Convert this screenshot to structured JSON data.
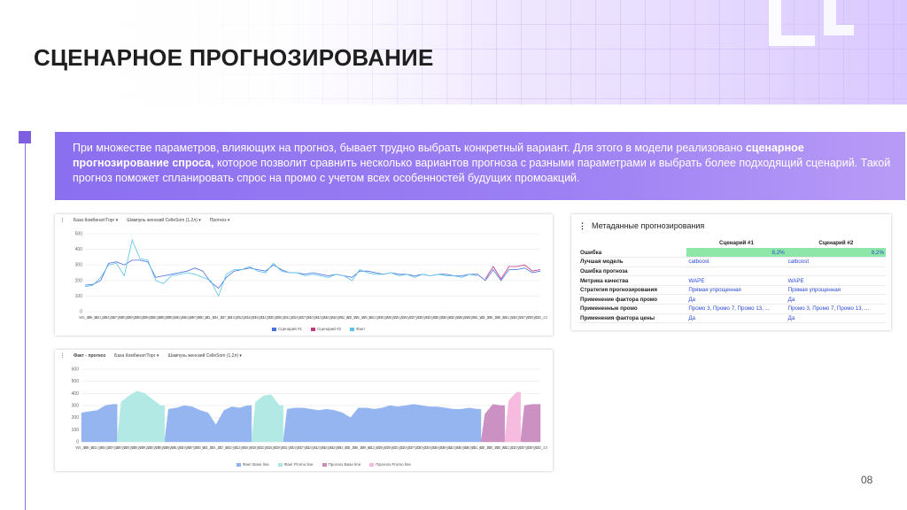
{
  "slide": {
    "title": "СЦЕНАРНОЕ ПРОГНОЗИРОВАНИЕ",
    "page_number": "08",
    "accent": "#8a6ff0"
  },
  "intro": {
    "part1": "При множестве параметров, влияющих на прогноз, бывает трудно выбрать конкретный вариант. Для этого в модели реализовано ",
    "highlight": "сценарное прогнозирование спроса,",
    "part2": " которое позволит сравнить несколько вариантов прогноза с разными параметрами и выбрать более подходящий сценарий. Такой прогноз поможет спланировать спрос на промо с учетом всех особенностей будущих промоакций."
  },
  "chart_top": {
    "filters": [
      "База Комбинат/Торг",
      "Шампунь женский CelleSom (1,2л)",
      "Прогноз"
    ],
    "legend": [
      "Сценарий #1",
      "Сценарий #2",
      "Факт"
    ],
    "colors": {
      "scenario1": "#4a6fe0",
      "scenario2": "#c0387a",
      "fact": "#5bc3e8"
    }
  },
  "chart_bottom": {
    "title": "Факт - прогноз",
    "filters": [
      "База Комбинат/Торг",
      "Шампунь женский CelleSom (1,2л)"
    ],
    "legend": [
      "Факт Base line",
      "Факт Promo line",
      "Прогноз Base line",
      "Прогноз Promo line"
    ],
    "colors": {
      "fact_base": "#8fb2ef",
      "fact_promo": "#aee8e3",
      "forecast_base": "#c98cbf",
      "forecast_promo": "#f6b8dd"
    }
  },
  "chart_data": [
    {
      "type": "line",
      "title": "",
      "x": [
        "W5_20",
        "W8_20",
        "W11_20",
        "W14_20",
        "W17_20",
        "W20_20",
        "W23_20",
        "W26_20",
        "W29_20",
        "W32_20",
        "W35_20",
        "W38_20",
        "W41_20",
        "W44_20",
        "W47_20",
        "W50_20",
        "W1_21",
        "W4_21",
        "W7_21",
        "W10_21",
        "W13_21",
        "W16_21",
        "W19_21",
        "W22_21",
        "W25_21",
        "W28_21",
        "W31_21",
        "W34_21",
        "W37_21",
        "W40_21",
        "W43_21",
        "W46_21",
        "W49_21",
        "W52_21",
        "W3_22",
        "W6_22",
        "W9_22",
        "W12_22",
        "W15_22",
        "W18_22",
        "W21_22",
        "W24_22",
        "W27_22",
        "W30_22",
        "W33_22",
        "W36_22",
        "W39_22",
        "W42_22",
        "W45_22",
        "W48_22",
        "W51_22",
        "W2_23",
        "W5_23",
        "W8_23",
        "W11_23",
        "W14_23",
        "W17_23",
        "W20_23",
        "W23_23"
      ],
      "ylim": [
        0,
        500
      ],
      "yticks": [
        0,
        100,
        200,
        300,
        400,
        500
      ],
      "series": [
        {
          "name": "Сценарий #1",
          "values": [
            170,
            175,
            200,
            310,
            320,
            300,
            330,
            330,
            320,
            220,
            230,
            240,
            250,
            260,
            280,
            260,
            190,
            150,
            220,
            260,
            270,
            280,
            270,
            260,
            300,
            270,
            250,
            250,
            240,
            250,
            240,
            230,
            240,
            230,
            220,
            260,
            260,
            250,
            240,
            250,
            240,
            240,
            230,
            240,
            230,
            240,
            240,
            230,
            230,
            240,
            240,
            200,
            270,
            200,
            270,
            270,
            280,
            250,
            260
          ]
        },
        {
          "name": "Сценарий #2",
          "values": [
            null,
            null,
            null,
            null,
            null,
            null,
            null,
            null,
            null,
            null,
            null,
            null,
            null,
            null,
            null,
            null,
            null,
            null,
            null,
            null,
            null,
            null,
            null,
            null,
            null,
            null,
            null,
            null,
            null,
            null,
            null,
            null,
            null,
            null,
            null,
            null,
            null,
            null,
            null,
            null,
            null,
            null,
            null,
            null,
            null,
            null,
            null,
            null,
            null,
            null,
            null,
            210,
            290,
            210,
            290,
            290,
            300,
            260,
            270
          ]
        },
        {
          "name": "Факт",
          "values": [
            160,
            170,
            220,
            300,
            310,
            230,
            460,
            340,
            330,
            200,
            180,
            230,
            240,
            250,
            240,
            220,
            200,
            100,
            240,
            270,
            270,
            290,
            260,
            250,
            310,
            260,
            250,
            250,
            230,
            240,
            230,
            220,
            240,
            230,
            200,
            270,
            250,
            240,
            240,
            250,
            230,
            240,
            220,
            240,
            230,
            240,
            230,
            230,
            220,
            240,
            230,
            null,
            null,
            null,
            null,
            null,
            null,
            null,
            null
          ]
        }
      ]
    },
    {
      "type": "area",
      "title": "Факт - прогноз",
      "x": [
        "W5_20",
        "W8_20",
        "W11_20",
        "W14_20",
        "W17_20",
        "W20_20",
        "W23_20",
        "W26_20",
        "W29_20",
        "W32_20",
        "W35_20",
        "W38_20",
        "W41_20",
        "W44_20",
        "W47_20",
        "W50_20",
        "W1_21",
        "W4_21",
        "W7_21",
        "W10_21",
        "W13_21",
        "W16_21",
        "W19_21",
        "W22_21",
        "W25_21",
        "W28_21",
        "W31_21",
        "W34_21",
        "W37_21",
        "W40_21",
        "W43_21",
        "W46_21",
        "W49_21",
        "W52_21",
        "W3_22",
        "W6_22",
        "W9_22",
        "W12_22",
        "W15_22",
        "W18_22",
        "W21_22",
        "W24_22",
        "W27_22",
        "W30_22",
        "W33_22",
        "W36_22",
        "W39_22",
        "W42_22",
        "W45_22",
        "W48_22",
        "W51_22",
        "W2_23",
        "W5_23",
        "W8_23",
        "W11_23",
        "W14_23",
        "W17_23",
        "W20_23",
        "W23_23"
      ],
      "ylim": [
        0,
        600
      ],
      "yticks": [
        0,
        100,
        200,
        300,
        400,
        500,
        600
      ],
      "series": [
        {
          "name": "Факт Base line",
          "values": [
            240,
            250,
            260,
            300,
            310,
            0,
            0,
            0,
            0,
            0,
            0,
            270,
            280,
            300,
            290,
            260,
            240,
            140,
            260,
            290,
            280,
            300,
            0,
            0,
            0,
            0,
            270,
            280,
            280,
            270,
            260,
            270,
            260,
            240,
            200,
            280,
            280,
            270,
            280,
            300,
            290,
            300,
            310,
            300,
            290,
            290,
            280,
            270,
            270,
            280,
            270,
            0,
            0,
            0,
            0,
            0,
            0,
            0,
            0
          ]
        },
        {
          "name": "Факт Promo line",
          "values": [
            0,
            0,
            0,
            0,
            0,
            330,
            380,
            420,
            400,
            350,
            300,
            0,
            0,
            0,
            0,
            0,
            0,
            0,
            0,
            0,
            0,
            0,
            330,
            380,
            390,
            300,
            0,
            0,
            0,
            0,
            0,
            0,
            0,
            0,
            0,
            0,
            0,
            0,
            0,
            0,
            0,
            0,
            0,
            0,
            0,
            0,
            0,
            0,
            0,
            0,
            0,
            0,
            0,
            0,
            0,
            0,
            0,
            0,
            0
          ]
        },
        {
          "name": "Прогноз Base line",
          "values": [
            0,
            0,
            0,
            0,
            0,
            0,
            0,
            0,
            0,
            0,
            0,
            0,
            0,
            0,
            0,
            0,
            0,
            0,
            0,
            0,
            0,
            0,
            0,
            0,
            0,
            0,
            0,
            0,
            0,
            0,
            0,
            0,
            0,
            0,
            0,
            0,
            0,
            0,
            0,
            0,
            0,
            0,
            0,
            0,
            0,
            0,
            0,
            0,
            0,
            0,
            0,
            230,
            310,
            300,
            0,
            0,
            300,
            310,
            310
          ]
        },
        {
          "name": "Прогноз Promo line",
          "values": [
            0,
            0,
            0,
            0,
            0,
            0,
            0,
            0,
            0,
            0,
            0,
            0,
            0,
            0,
            0,
            0,
            0,
            0,
            0,
            0,
            0,
            0,
            0,
            0,
            0,
            0,
            0,
            0,
            0,
            0,
            0,
            0,
            0,
            0,
            0,
            0,
            0,
            0,
            0,
            0,
            0,
            0,
            0,
            0,
            0,
            0,
            0,
            0,
            0,
            0,
            0,
            0,
            0,
            0,
            340,
            410,
            0,
            0,
            0
          ]
        }
      ]
    }
  ],
  "metadata": {
    "title": "Метаданные прогнозирования",
    "columns": [
      "",
      "Сценарий #1",
      "Сценарий #2"
    ],
    "rows": [
      {
        "label": "Ошибка",
        "s1": "8,2%",
        "s2": "8,2%",
        "highlight": true
      },
      {
        "label": "Лучшая модель",
        "s1": "catboost",
        "s2": "catboost"
      },
      {
        "label": "Ошибка прогноза",
        "s1": "",
        "s2": ""
      },
      {
        "label": "Метрика качества",
        "s1": "WAPE",
        "s2": "WAPE"
      },
      {
        "label": "Стратегия прогнозирования",
        "s1": "Прямая упрощенная",
        "s2": "Прямая упрощенная"
      },
      {
        "label": "Применение фактора промо",
        "s1": "Да",
        "s2": "Да"
      },
      {
        "label": "Примененные промо",
        "s1": "Промо 3, Промо 7, Промо 13, ...",
        "s2": "Промо 3, Промо 7, Промо 13, ..."
      },
      {
        "label": "Применения фактора цены",
        "s1": "Да",
        "s2": "Да"
      }
    ]
  }
}
